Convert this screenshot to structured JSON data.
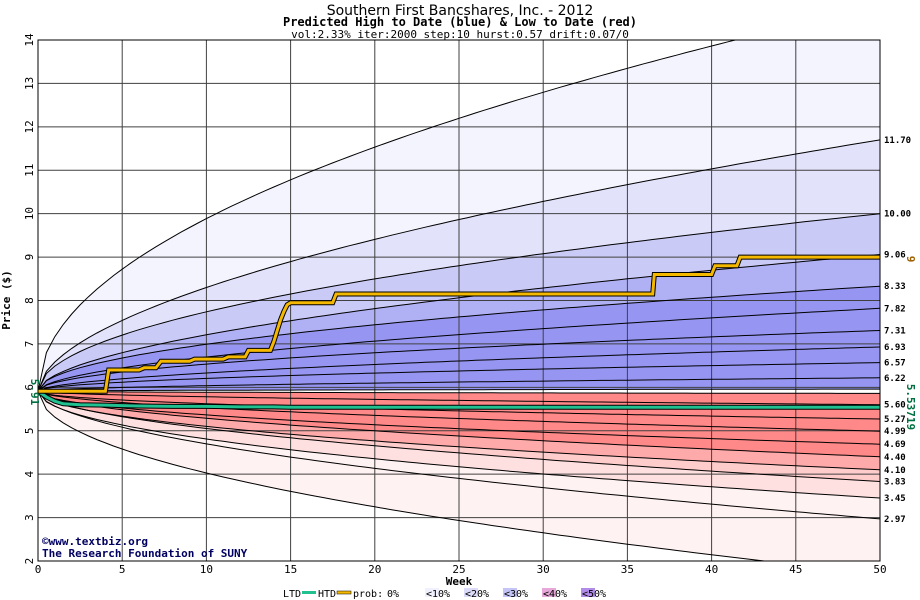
{
  "header": {
    "title": "Southern First Bancshares, Inc. - 2012",
    "subtitle": "Predicted High to Date (blue) &  Low to Date (red)",
    "params": "vol:2.33% iter:2000 step:10 hurst:0.57 drift:0.07/0"
  },
  "colors": {
    "background": "#ffffff",
    "grid": "#404040",
    "htd_line": "#f5b800",
    "ltd_line": "#20c090",
    "blue_bands": [
      "#f4f4ff",
      "#e2e2fb",
      "#cacaf6",
      "#b0b0f4",
      "#9696f2"
    ],
    "red_bands": [
      "#fff2f2",
      "#ffe0e0",
      "#ffcccc",
      "#ffaaaa",
      "#ff8888"
    ],
    "right_label": "#000000",
    "current_value_label": "#007040",
    "high_label": "#a06000"
  },
  "chart_data": {
    "type": "area",
    "xlabel": "Week",
    "ylabel": "Price ($)",
    "xlim": [
      0,
      50
    ],
    "ylim": [
      2,
      14
    ],
    "xticks": [
      0,
      5,
      10,
      15,
      20,
      25,
      30,
      35,
      40,
      45,
      50
    ],
    "yticks": [
      2,
      3,
      4,
      5,
      6,
      7,
      8,
      9,
      10,
      11,
      12,
      13,
      14
    ],
    "grid": true,
    "start_value": 5.91,
    "start_label": "5.91",
    "current_low_label": "5.53719",
    "current_high_label": "9",
    "upper_quantiles": [
      {
        "end": 14.8,
        "label": ""
      },
      {
        "end": 11.7,
        "label": "11.70"
      },
      {
        "end": 10.0,
        "label": "10.00"
      },
      {
        "end": 9.06,
        "label": "9.06"
      },
      {
        "end": 8.33,
        "label": "8.33"
      },
      {
        "end": 7.82,
        "label": "7.82"
      },
      {
        "end": 7.31,
        "label": "7.31"
      },
      {
        "end": 6.93,
        "label": "6.93"
      },
      {
        "end": 6.57,
        "label": "6.57"
      },
      {
        "end": 6.22,
        "label": "6.22"
      },
      {
        "end": 5.96,
        "label": ""
      }
    ],
    "lower_quantiles": [
      {
        "end": 5.86,
        "label": ""
      },
      {
        "end": 5.6,
        "label": "5.60"
      },
      {
        "end": 5.27,
        "label": "5.27"
      },
      {
        "end": 4.99,
        "label": "4.99"
      },
      {
        "end": 4.69,
        "label": "4.69"
      },
      {
        "end": 4.4,
        "label": "4.40"
      },
      {
        "end": 4.1,
        "label": "4.10"
      },
      {
        "end": 3.83,
        "label": "3.83"
      },
      {
        "end": 3.45,
        "label": "3.45"
      },
      {
        "end": 2.97,
        "label": "2.97"
      },
      {
        "end": 1.7,
        "label": ""
      }
    ],
    "htd_series": {
      "name": "HTD",
      "x": [
        0,
        4,
        4.2,
        6,
        6.3,
        7,
        7.3,
        9,
        9.3,
        11,
        11.3,
        12.3,
        12.5,
        13.8,
        14,
        14.2,
        14.4,
        14.6,
        14.8,
        15,
        17.5,
        17.7,
        36.5,
        36.6,
        40,
        40.2,
        41.5,
        41.7,
        50
      ],
      "y": [
        5.91,
        5.91,
        6.4,
        6.4,
        6.45,
        6.45,
        6.6,
        6.6,
        6.65,
        6.65,
        6.7,
        6.7,
        6.85,
        6.85,
        7.05,
        7.3,
        7.55,
        7.75,
        7.9,
        7.95,
        7.95,
        8.15,
        8.15,
        8.6,
        8.6,
        8.8,
        8.8,
        9.0,
        9.0
      ]
    },
    "ltd_series": {
      "name": "LTD",
      "x": [
        0,
        0.5,
        1,
        1.5,
        2.5,
        4,
        5,
        6,
        8,
        10,
        12,
        14,
        15,
        16,
        50
      ],
      "y": [
        5.91,
        5.78,
        5.68,
        5.62,
        5.6,
        5.59,
        5.58,
        5.57,
        5.56,
        5.56,
        5.55,
        5.55,
        5.54,
        5.54,
        5.54
      ]
    }
  },
  "footer": {
    "credit_url": "©www.textbiz.org",
    "credit_org": "The Research Foundation of SUNY"
  },
  "legend": {
    "ltd": "LTD",
    "htd": "HTD",
    "prob_prefix": "prob:",
    "items": [
      "0%",
      "<10%",
      "<20%",
      "<30%",
      "<40%",
      "<50%"
    ],
    "item_colors": [
      "#ffffff",
      "#f0f0ff",
      "#dcdcfa",
      "#c4c4f6",
      "#e6a8d8",
      "#b08ce8"
    ]
  }
}
